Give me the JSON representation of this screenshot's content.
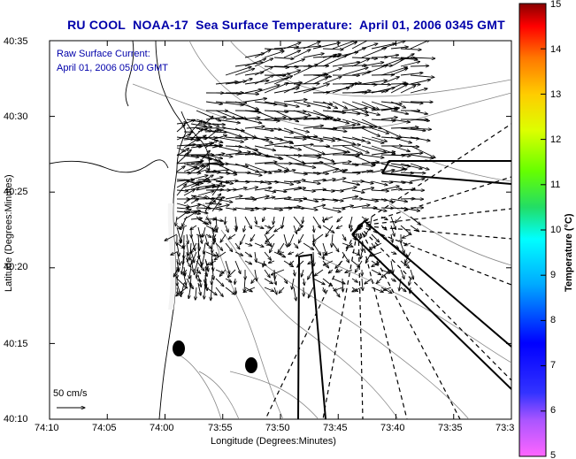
{
  "title": {
    "group": "RU COOL",
    "satellite": "NOAA-17",
    "product": "Sea Surface Temperature:",
    "datetime": "April 01, 2006 0345 GMT"
  },
  "annotation": {
    "line1": "Raw Surface Current:",
    "line2": "April 01, 2006 05:00 GMT"
  },
  "scale": {
    "label": "50 cm/s"
  },
  "axes": {
    "xlabel": "Longitude (Degrees:Minutes)",
    "ylabel": "Latitude (Degrees:Minutes)",
    "xticks": [
      "74:10",
      "74:05",
      "74:00",
      "73:55",
      "73:50",
      "73:45",
      "73:40",
      "73:35",
      "73:3"
    ],
    "yticks": [
      "40:35",
      "40:30",
      "40:25",
      "40:20",
      "40:15",
      "40:10"
    ]
  },
  "colorbar": {
    "label": "Temperature (°C)",
    "ticks": [
      "15",
      "14",
      "13",
      "12",
      "11",
      "10",
      "9",
      "8",
      "7",
      "6",
      "5"
    ],
    "range": [
      5,
      15
    ],
    "colors": [
      "#ff66ff",
      "#5544ff",
      "#0000ff",
      "#00aaff",
      "#00ffff",
      "#22dd66",
      "#66ff00",
      "#ddff00",
      "#ffcc00",
      "#ff7700",
      "#ff0000",
      "#880000"
    ]
  }
}
